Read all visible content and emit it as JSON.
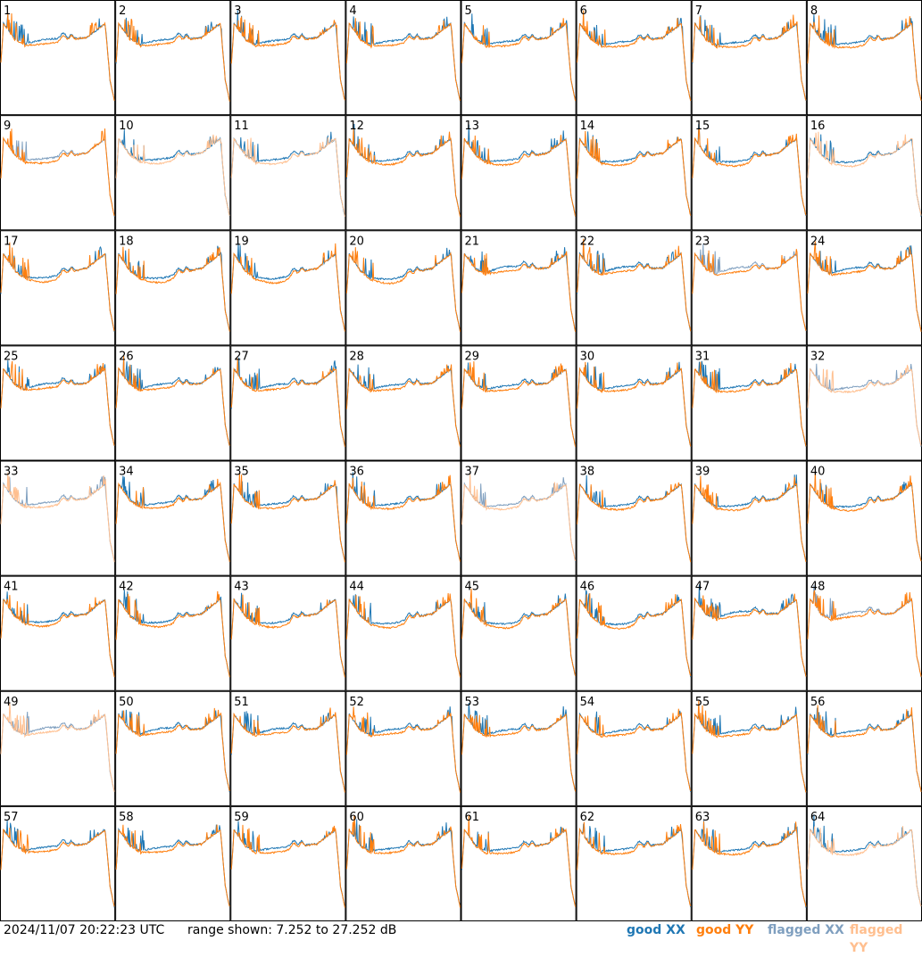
{
  "chart_data": {
    "type": "line",
    "layout": "8x8 small multiples, one panel per antenna",
    "panels": [
      {
        "id": "1",
        "xx": "good",
        "yy": "good"
      },
      {
        "id": "2",
        "xx": "good",
        "yy": "good"
      },
      {
        "id": "3",
        "xx": "good",
        "yy": "good"
      },
      {
        "id": "4",
        "xx": "good",
        "yy": "good"
      },
      {
        "id": "5",
        "xx": "good",
        "yy": "good"
      },
      {
        "id": "6",
        "xx": "good",
        "yy": "good"
      },
      {
        "id": "7",
        "xx": "good",
        "yy": "good"
      },
      {
        "id": "8",
        "xx": "good",
        "yy": "good"
      },
      {
        "id": "9",
        "xx": "flagged",
        "yy": "good"
      },
      {
        "id": "10",
        "xx": "good",
        "yy": "flagged"
      },
      {
        "id": "11",
        "xx": "good",
        "yy": "flagged"
      },
      {
        "id": "12",
        "xx": "good",
        "yy": "good"
      },
      {
        "id": "13",
        "xx": "good",
        "yy": "good"
      },
      {
        "id": "14",
        "xx": "good",
        "yy": "good"
      },
      {
        "id": "15",
        "xx": "good",
        "yy": "good"
      },
      {
        "id": "16",
        "xx": "good",
        "yy": "flagged"
      },
      {
        "id": "17",
        "xx": "good",
        "yy": "good"
      },
      {
        "id": "18",
        "xx": "good",
        "yy": "good"
      },
      {
        "id": "19",
        "xx": "good",
        "yy": "good"
      },
      {
        "id": "20",
        "xx": "good",
        "yy": "good"
      },
      {
        "id": "21",
        "xx": "good",
        "yy": "good"
      },
      {
        "id": "22",
        "xx": "good",
        "yy": "good"
      },
      {
        "id": "23",
        "xx": "flagged",
        "yy": "good"
      },
      {
        "id": "24",
        "xx": "good",
        "yy": "good"
      },
      {
        "id": "25",
        "xx": "good",
        "yy": "good"
      },
      {
        "id": "26",
        "xx": "good",
        "yy": "good"
      },
      {
        "id": "27",
        "xx": "good",
        "yy": "good"
      },
      {
        "id": "28",
        "xx": "good",
        "yy": "good"
      },
      {
        "id": "29",
        "xx": "good",
        "yy": "good"
      },
      {
        "id": "30",
        "xx": "good",
        "yy": "good"
      },
      {
        "id": "31",
        "xx": "good",
        "yy": "good"
      },
      {
        "id": "32",
        "xx": "flagged",
        "yy": "flagged"
      },
      {
        "id": "33",
        "xx": "flagged",
        "yy": "flagged"
      },
      {
        "id": "34",
        "xx": "good",
        "yy": "good"
      },
      {
        "id": "35",
        "xx": "good",
        "yy": "good"
      },
      {
        "id": "36",
        "xx": "good",
        "yy": "good"
      },
      {
        "id": "37",
        "xx": "flagged",
        "yy": "flagged"
      },
      {
        "id": "38",
        "xx": "good",
        "yy": "good"
      },
      {
        "id": "39",
        "xx": "good",
        "yy": "good"
      },
      {
        "id": "40",
        "xx": "good",
        "yy": "good"
      },
      {
        "id": "41",
        "xx": "good",
        "yy": "good"
      },
      {
        "id": "42",
        "xx": "good",
        "yy": "good"
      },
      {
        "id": "43",
        "xx": "good",
        "yy": "good"
      },
      {
        "id": "44",
        "xx": "good",
        "yy": "good"
      },
      {
        "id": "45",
        "xx": "good",
        "yy": "good"
      },
      {
        "id": "46",
        "xx": "good",
        "yy": "good"
      },
      {
        "id": "47",
        "xx": "good",
        "yy": "good"
      },
      {
        "id": "48",
        "xx": "flagged",
        "yy": "good"
      },
      {
        "id": "49",
        "xx": "flagged",
        "yy": "flagged"
      },
      {
        "id": "50",
        "xx": "good",
        "yy": "good"
      },
      {
        "id": "51",
        "xx": "good",
        "yy": "good"
      },
      {
        "id": "52",
        "xx": "good",
        "yy": "good"
      },
      {
        "id": "53",
        "xx": "good",
        "yy": "good"
      },
      {
        "id": "54",
        "xx": "good",
        "yy": "good"
      },
      {
        "id": "55",
        "xx": "good",
        "yy": "good"
      },
      {
        "id": "56",
        "xx": "good",
        "yy": "good"
      },
      {
        "id": "57",
        "xx": "good",
        "yy": "good"
      },
      {
        "id": "58",
        "xx": "good",
        "yy": "good"
      },
      {
        "id": "59",
        "xx": "good",
        "yy": "good"
      },
      {
        "id": "60",
        "xx": "good",
        "yy": "good"
      },
      {
        "id": "61",
        "xx": "good",
        "yy": "good"
      },
      {
        "id": "62",
        "xx": "good",
        "yy": "good"
      },
      {
        "id": "63",
        "xx": "good",
        "yy": "good"
      },
      {
        "id": "64",
        "xx": "good",
        "yy": "flagged"
      }
    ],
    "y_range_db": [
      7.252,
      27.252
    ],
    "grid": false,
    "legend": "bottom-right",
    "colors": {
      "good_xx": "#1f77b4",
      "good_yy": "#ff7f0e",
      "flagged_xx": "#7f9fbf",
      "flagged_yy": "#ffbf8f"
    }
  },
  "footer": {
    "timestamp": "2024/11/07 20:22:23 UTC",
    "range": "range shown: 7.252 to 27.252 dB"
  },
  "legend": {
    "good_xx": "good XX",
    "good_yy": "good YY",
    "flagged_xx": "flagged XX",
    "flagged_yy": "flagged YY"
  }
}
